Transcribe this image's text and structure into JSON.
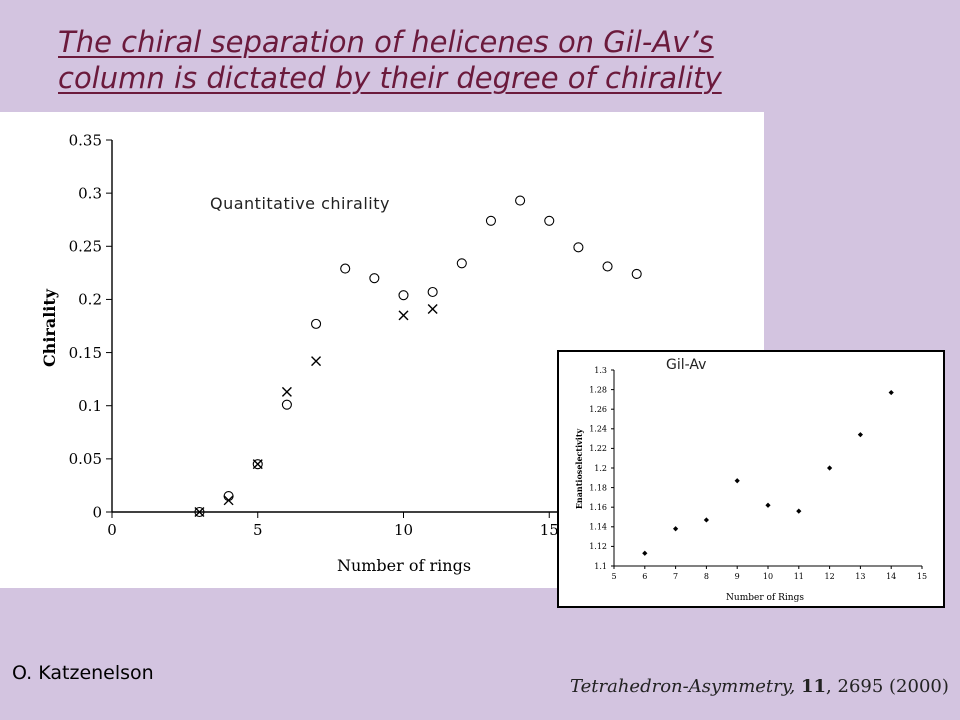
{
  "slide": {
    "title_line1": "The chiral separation of helicenes on Gil-Av’s",
    "title_line2": "column is dictated by their degree of chirality",
    "author": "O. Katzenelson",
    "citation": {
      "journal": "Tetrahedron-Asymmetry,",
      "volume": "11",
      "pages_year": ", 2695 (2000)"
    }
  },
  "chart_data": [
    {
      "type": "scatter",
      "annotation": "Quantitative chirality",
      "xlabel": "Number of rings",
      "ylabel": "Chirality",
      "xlim": [
        0,
        20
      ],
      "ylim": [
        0,
        0.35
      ],
      "x_ticks": [
        0,
        5,
        10,
        15
      ],
      "x_tick_labels": [
        "0",
        "5",
        "10",
        "15"
      ],
      "y_ticks": [
        0,
        0.05,
        0.1,
        0.15,
        0.2,
        0.25,
        0.3,
        0.35
      ],
      "y_tick_labels": [
        "0",
        "0.05",
        "0.1",
        "0.15",
        "0.2",
        "0.25",
        "0.3",
        "0.35"
      ],
      "grid": false,
      "series": [
        {
          "marker": "circle",
          "x": [
            3,
            4,
            5,
            6,
            7,
            8,
            9,
            10,
            11,
            12,
            13,
            14,
            15,
            16,
            17,
            18
          ],
          "y": [
            0.0,
            0.015,
            0.045,
            0.101,
            0.177,
            0.229,
            0.22,
            0.204,
            0.207,
            0.234,
            0.274,
            0.293,
            0.274,
            0.249,
            0.231,
            0.224
          ]
        },
        {
          "marker": "cross",
          "x": [
            3,
            4,
            5,
            6,
            7,
            10,
            11
          ],
          "y": [
            0.0,
            0.011,
            0.045,
            0.113,
            0.142,
            0.185,
            0.191
          ]
        }
      ]
    },
    {
      "type": "scatter",
      "annotation": "Gil-Av",
      "xlabel": "Number of Rings",
      "ylabel": "Enantioselectivity",
      "xlim": [
        5,
        15
      ],
      "ylim": [
        1.1,
        1.3
      ],
      "x_ticks": [
        5,
        6,
        7,
        8,
        9,
        10,
        11,
        12,
        13,
        14,
        15
      ],
      "x_tick_labels": [
        "5",
        "6",
        "7",
        "8",
        "9",
        "10",
        "11",
        "12",
        "13",
        "14",
        "15"
      ],
      "y_ticks": [
        1.1,
        1.12,
        1.14,
        1.16,
        1.18,
        1.2,
        1.22,
        1.24,
        1.26,
        1.28,
        1.3
      ],
      "y_tick_labels": [
        "1.1",
        "1.12",
        "1.14",
        "1.16",
        "1.18",
        "1.2",
        "1.22",
        "1.24",
        "1.26",
        "1.28",
        "1.3"
      ],
      "grid": false,
      "series": [
        {
          "marker": "diamond",
          "x": [
            6,
            7,
            8,
            9,
            10,
            11,
            12,
            13,
            14
          ],
          "y": [
            1.113,
            1.138,
            1.147,
            1.187,
            1.162,
            1.156,
            1.2,
            1.234,
            1.277
          ]
        }
      ]
    }
  ]
}
